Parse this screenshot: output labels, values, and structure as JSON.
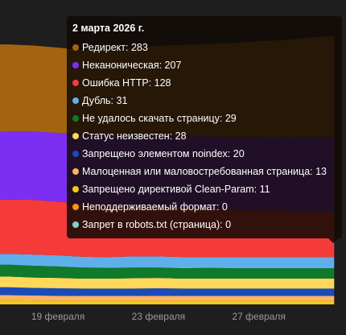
{
  "chart_data": {
    "type": "stacked_area",
    "categories": [
      null,
      null,
      null,
      "19 февраля",
      null,
      null,
      null,
      "23 февраля",
      null,
      null,
      null,
      "27 февраля",
      null,
      null,
      null
    ],
    "ylim": [
      0,
      850
    ],
    "tooltip_title": "2 марта 2026 г.",
    "series": [
      {
        "name": "Редирект",
        "color": "#a4640f",
        "values": [
          245,
          243,
          240,
          238,
          236,
          240,
          245,
          250,
          255,
          258,
          262,
          268,
          272,
          278,
          283
        ]
      },
      {
        "name": "Неканоническая",
        "color": "#7c2ff2",
        "values": [
          190,
          190,
          191,
          192,
          193,
          195,
          196,
          198,
          200,
          201,
          202,
          203,
          204,
          206,
          207
        ]
      },
      {
        "name": "Ошибка HTTP",
        "color": "#f53a3a",
        "values": [
          150,
          152,
          153,
          150,
          148,
          145,
          142,
          140,
          138,
          136,
          134,
          132,
          130,
          129,
          128
        ]
      },
      {
        "name": "Дубль",
        "color": "#5fb0ea",
        "values": [
          30,
          30,
          31,
          31,
          30,
          30,
          31,
          31,
          31,
          30,
          31,
          31,
          31,
          31,
          31
        ]
      },
      {
        "name": "Не удалось скачать страницу",
        "color": "#0f7a2a",
        "values": [
          32,
          33,
          33,
          32,
          31,
          30,
          30,
          29,
          29,
          30,
          29,
          29,
          29,
          29,
          29
        ]
      },
      {
        "name": "Статус неизвестен",
        "color": "#ffd75a",
        "values": [
          30,
          30,
          29,
          29,
          28,
          28,
          29,
          29,
          28,
          28,
          28,
          28,
          28,
          28,
          28
        ]
      },
      {
        "name": "Запрещено элементом noindex",
        "color": "#1a4cb8",
        "values": [
          22,
          22,
          21,
          21,
          20,
          20,
          20,
          21,
          20,
          20,
          20,
          20,
          20,
          20,
          20
        ]
      },
      {
        "name": "Малоценная или маловостребованная страница",
        "color": "#ffb368",
        "values": [
          14,
          14,
          14,
          13,
          13,
          13,
          13,
          13,
          13,
          13,
          13,
          13,
          13,
          13,
          13
        ]
      },
      {
        "name": "Запрещено директивой Clean-Param",
        "color": "#f2c81e",
        "values": [
          12,
          12,
          11,
          11,
          11,
          11,
          11,
          11,
          11,
          11,
          11,
          11,
          11,
          11,
          11
        ]
      },
      {
        "name": "Неподдерживаемый формат",
        "color": "#f7941d",
        "values": [
          0,
          0,
          0,
          0,
          0,
          0,
          0,
          0,
          0,
          0,
          0,
          0,
          0,
          0,
          0
        ]
      },
      {
        "name": "Запрет в robots.txt (страница)",
        "color": "#7fd3c3",
        "values": [
          0,
          0,
          0,
          0,
          0,
          0,
          0,
          0,
          0,
          0,
          0,
          0,
          0,
          0,
          0
        ]
      }
    ]
  }
}
